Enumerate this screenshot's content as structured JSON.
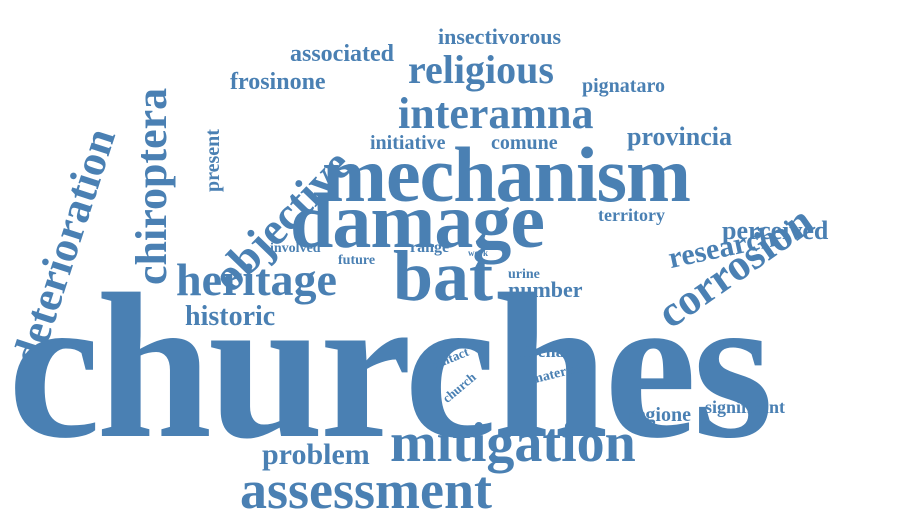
{
  "color": "#4a80b3",
  "words": [
    {
      "text": "churches"
    },
    {
      "text": "mechanism"
    },
    {
      "text": "damage"
    },
    {
      "text": "bat"
    },
    {
      "text": "mitigation"
    },
    {
      "text": "assessment"
    },
    {
      "text": "heritage"
    },
    {
      "text": "interamna"
    },
    {
      "text": "objective"
    },
    {
      "text": "corrosion"
    },
    {
      "text": "chiroptera"
    },
    {
      "text": "deterioration"
    },
    {
      "text": "religious"
    },
    {
      "text": "associated"
    },
    {
      "text": "insectivorous"
    },
    {
      "text": "frosinone"
    },
    {
      "text": "present"
    },
    {
      "text": "pignataro"
    },
    {
      "text": "initiative"
    },
    {
      "text": "comune"
    },
    {
      "text": "provincia"
    },
    {
      "text": "territory"
    },
    {
      "text": "perceived"
    },
    {
      "text": "research"
    },
    {
      "text": "involved"
    },
    {
      "text": "range"
    },
    {
      "text": "work"
    },
    {
      "text": "future"
    },
    {
      "text": "urine"
    },
    {
      "text": "number"
    },
    {
      "text": "historic"
    },
    {
      "text": "contact"
    },
    {
      "text": "church"
    },
    {
      "text": "lirenas"
    },
    {
      "text": "material"
    },
    {
      "text": "regione"
    },
    {
      "text": "significant"
    },
    {
      "text": "problem"
    }
  ]
}
